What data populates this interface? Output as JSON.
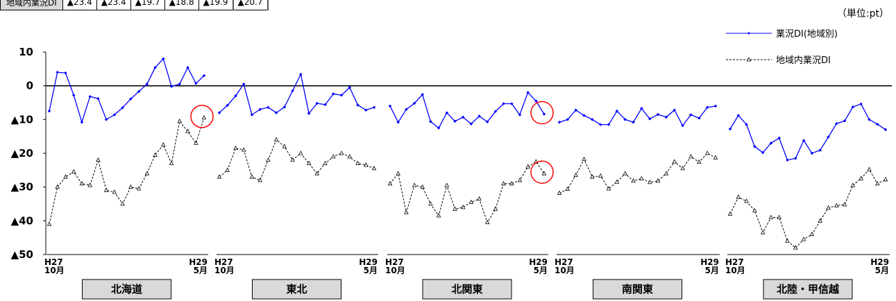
{
  "header_table": {
    "label": "地域内業況DI",
    "values": [
      "▲23.4",
      "▲23.4",
      "▲19.7",
      "▲18.8",
      "▲19.9",
      "▲20.7"
    ]
  },
  "unit": "（単位:pt）",
  "chart_data": {
    "type": "line",
    "ylim": [
      -50,
      10
    ],
    "yticks": [
      10,
      0,
      -10,
      -20,
      -30,
      -40,
      -50
    ],
    "ytick_labels": [
      "10",
      "0",
      "▲10",
      "▲20",
      "▲30",
      "▲40",
      "▲50"
    ],
    "x_start_label": [
      "H27",
      "10月"
    ],
    "x_end_label": [
      "H29",
      "5月"
    ],
    "legend": [
      {
        "name": "業況DI(地域別)",
        "color": "#0000ff",
        "marker": "diamond",
        "style": "solid"
      },
      {
        "name": "地域内業況DI",
        "color": "#000000",
        "marker": "triangle",
        "style": "dashed"
      }
    ],
    "panels": [
      {
        "region": "北海道",
        "series": [
          {
            "name": "業況DI(地域別)",
            "values": [
              -7.5,
              4,
              3.8,
              -2.8,
              -10.8,
              -3.2,
              -3.8,
              -10,
              -8.6,
              -6.5,
              -3.9,
              -1.7,
              0.5,
              5.4,
              8,
              -0.2,
              0.5,
              5.4,
              0.7,
              3
            ]
          },
          {
            "name": "地域内業況DI",
            "values": [
              -41,
              -30,
              -27,
              -25.5,
              -29,
              -29.5,
              -22,
              -31,
              -31.5,
              -35,
              -30,
              -30.5,
              -26,
              -20.5,
              -17.5,
              -23,
              -10.5,
              -13.5,
              -17,
              -9.5
            ]
          }
        ],
        "circle_index": 19,
        "circle_series": 1
      },
      {
        "region": "東北",
        "series": [
          {
            "name": "業況DI(地域別)",
            "values": [
              -8,
              -5.8,
              -3,
              0.5,
              -8.6,
              -7,
              -6.4,
              -8,
              -6.3,
              -1.5,
              3.4,
              -8.2,
              -5.2,
              -5.6,
              -2.4,
              -2.8,
              -0.5,
              -5.7,
              -7.2,
              -6.4
            ]
          },
          {
            "name": "地域内業況DI",
            "values": [
              -27,
              -25,
              -18.5,
              -19,
              -27,
              -28,
              -22,
              -16,
              -18,
              -22,
              -20,
              -23,
              -26,
              -23,
              -21,
              -20,
              -21,
              -23,
              -23.5,
              -24.5
            ]
          }
        ]
      },
      {
        "region": "北関東",
        "series": [
          {
            "name": "業況DI(地域別)",
            "values": [
              -6,
              -10.8,
              -7,
              -5.2,
              -2.6,
              -10.6,
              -12.5,
              -8,
              -10.5,
              -9.3,
              -11.3,
              -9,
              -10.7,
              -7.6,
              -5.3,
              -5.3,
              -8.6,
              -2,
              -4.5,
              -8.4
            ]
          },
          {
            "name": "地域内業況DI",
            "values": [
              -29,
              -26,
              -37.5,
              -29.5,
              -30,
              -35,
              -38.5,
              -29.5,
              -36.5,
              -36,
              -34.5,
              -33.5,
              -40.5,
              -36.5,
              -29,
              -29,
              -28,
              -24,
              -22.5,
              -26
            ]
          }
        ],
        "circle_index": 19,
        "circle_series": "both"
      },
      {
        "region": "南関東",
        "series": [
          {
            "name": "業況DI(地域別)",
            "values": [
              -10.8,
              -10,
              -7.2,
              -8.8,
              -10,
              -11.5,
              -11.5,
              -7.5,
              -10,
              -10.8,
              -6.7,
              -9.8,
              -8.5,
              -9.3,
              -7.2,
              -11.8,
              -8.6,
              -9.6,
              -6.4,
              -6
            ]
          },
          {
            "name": "地域内業況DI",
            "values": [
              -31.8,
              -30.6,
              -26.5,
              -21.8,
              -27,
              -26.7,
              -30.5,
              -28.5,
              -26,
              -28.2,
              -27.5,
              -28.6,
              -28.2,
              -26,
              -22.5,
              -24.5,
              -21,
              -22.6,
              -20,
              -21.3
            ]
          }
        ]
      },
      {
        "region": "北陸・甲信越",
        "series": [
          {
            "name": "業況DI(地域別)",
            "values": [
              -12.8,
              -8.8,
              -11.5,
              -18,
              -19.8,
              -17,
              -15.5,
              -22,
              -21.5,
              -16.2,
              -20,
              -19.1,
              -15.2,
              -11.2,
              -10.4,
              -6.3,
              -5.4,
              -10,
              -11.4,
              -13
            ]
          },
          {
            "name": "地域内業況DI",
            "values": [
              -38,
              -33,
              -34.2,
              -37,
              -43.5,
              -39,
              -39,
              -46,
              -48,
              -45.5,
              -44,
              -40,
              -36.2,
              -35.5,
              -35.2,
              -29.5,
              -27.5,
              -24.8,
              -29,
              -27.8
            ]
          }
        ]
      }
    ]
  }
}
